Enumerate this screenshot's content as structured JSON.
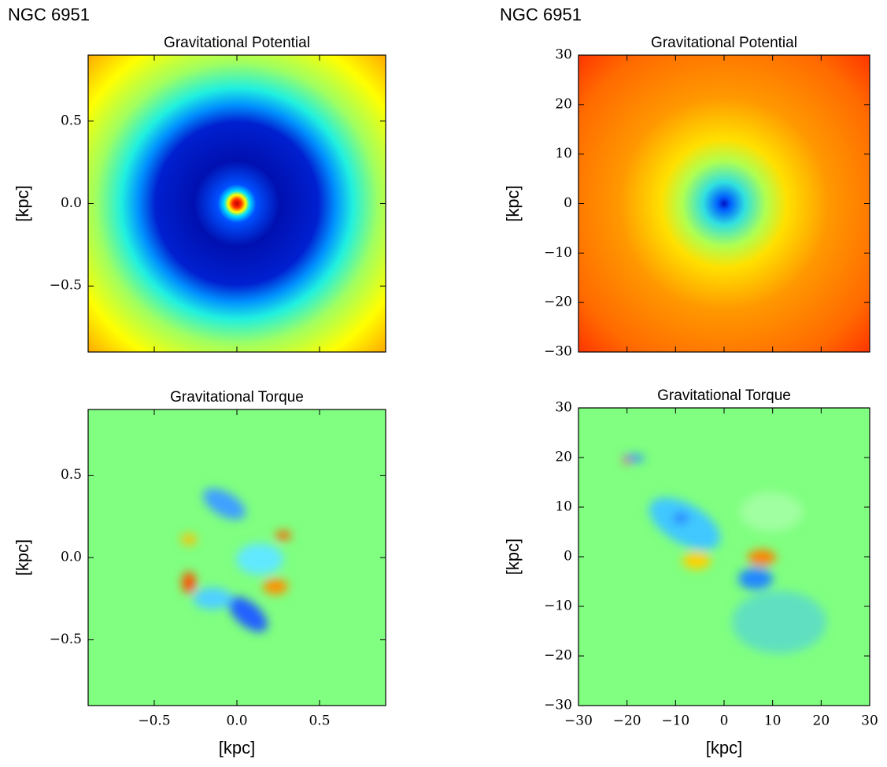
{
  "columns": [
    {
      "label": "NGC 6951"
    },
    {
      "label": "NGC 6951"
    }
  ],
  "chart_data": [
    {
      "type": "heatmap",
      "title": "Gravitational Potential",
      "ylabel": "[kpc]",
      "xlim": [
        -0.9,
        0.9
      ],
      "ylim": [
        -0.9,
        0.9
      ],
      "xticks": [
        -0.5,
        0,
        0.5
      ],
      "show_xtick_labels": false,
      "yticks": [
        {
          "value": -0.5,
          "label": "−0.5"
        },
        {
          "value": 0,
          "label": "0.0"
        },
        0.5
      ]
    },
    {
      "type": "heatmap",
      "title": "Gravitational Torque",
      "ylabel": "[kpc]",
      "xlabel": "[kpc]",
      "xlim": [
        -0.9,
        0.9
      ],
      "ylim": [
        -0.9,
        0.9
      ],
      "xticks": [
        {
          "value": -0.5,
          "label": "−0.5"
        },
        {
          "value": 0,
          "label": "0.0"
        },
        0.5
      ],
      "show_xtick_labels": true,
      "yticks": [
        {
          "value": -0.5,
          "label": "−0.5"
        },
        {
          "value": 0,
          "label": "0.0"
        },
        0.5
      ]
    },
    {
      "type": "heatmap",
      "title": "Gravitational Potential",
      "ylabel": "[kpc]",
      "xlim": [
        -30,
        30
      ],
      "ylim": [
        -30,
        30
      ],
      "xticks": [
        -30,
        -20,
        -10,
        0,
        10,
        20,
        30
      ],
      "show_xtick_labels": false,
      "yticks": [
        {
          "value": -30,
          "label": "−30"
        },
        {
          "value": -20,
          "label": "−20"
        },
        {
          "value": -10,
          "label": "−10"
        },
        0,
        10,
        20,
        30
      ]
    },
    {
      "type": "heatmap",
      "title": "Gravitational Torque",
      "ylabel": "[kpc]",
      "xlabel": "[kpc]",
      "xlim": [
        -30,
        30
      ],
      "ylim": [
        -30,
        30
      ],
      "xticks": [
        {
          "value": -30,
          "label": "−30"
        },
        {
          "value": -20,
          "label": "−20"
        },
        {
          "value": -10,
          "label": "−10"
        },
        0,
        10,
        20,
        30
      ],
      "show_xtick_labels": true,
      "yticks": [
        {
          "value": -30,
          "label": "−30"
        },
        {
          "value": -20,
          "label": "−20"
        },
        {
          "value": -10,
          "label": "−10"
        },
        0,
        10,
        20,
        30
      ]
    }
  ]
}
